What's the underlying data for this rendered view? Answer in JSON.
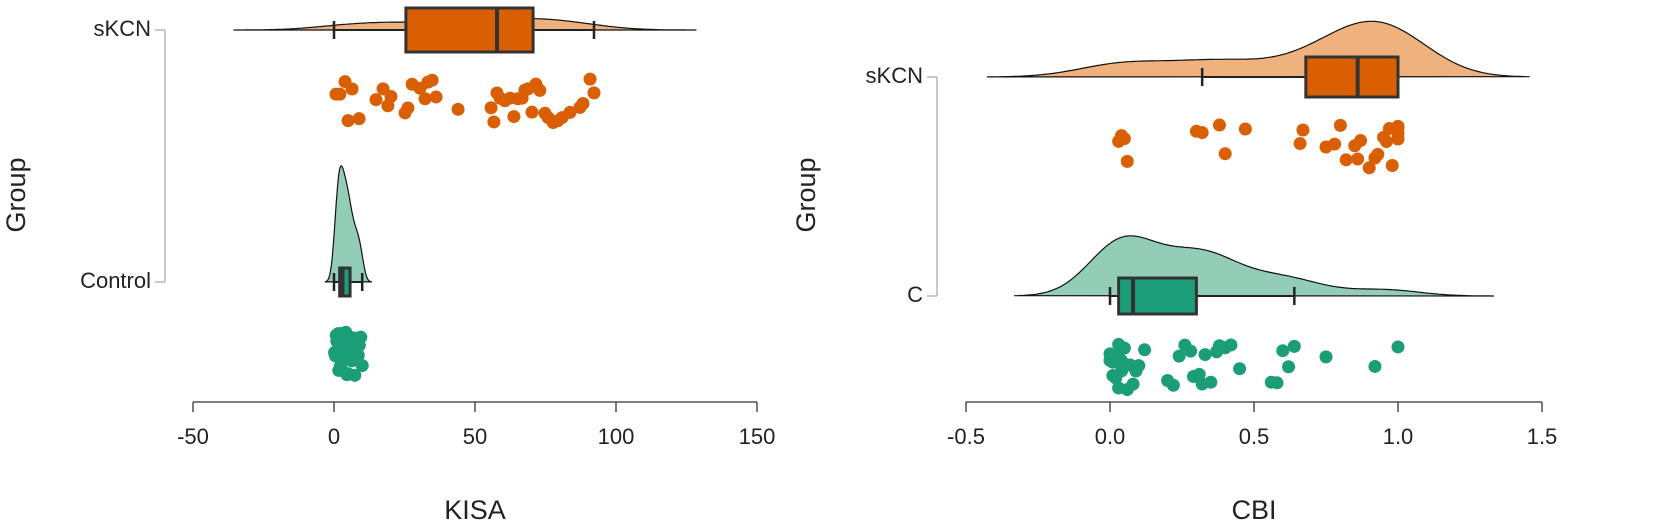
{
  "chart_data": [
    {
      "type": "raincloud",
      "x_label": "KISA",
      "y_label": "Group",
      "xlim": [
        -50,
        150
      ],
      "xticks": [
        -50,
        0,
        50,
        100,
        150
      ],
      "series": [
        {
          "name": "Control",
          "color": "#1b9e77",
          "cloud_color": "#93cdb7",
          "box": {
            "whisker_low": 0,
            "q1": 2,
            "median": 3,
            "q3": 5.7,
            "whisker_high": 10
          },
          "values": [
            0.2,
            0.5,
            0.8,
            1,
            1.2,
            1.4,
            1.5,
            1.7,
            1.9,
            2,
            2.1,
            2.3,
            2.5,
            2.6,
            2.8,
            3,
            3.1,
            3.3,
            3.5,
            3.8,
            4,
            4.2,
            4.4,
            4.6,
            4.8,
            5,
            5.2,
            5.4,
            5.7,
            6,
            6.3,
            6.6,
            7,
            7.4,
            7.8,
            8.2,
            8.6,
            9,
            9.5,
            10
          ]
        },
        {
          "name": "sKCN",
          "color": "#d95f02",
          "cloud_color": "#efb27f",
          "box": {
            "whisker_low": 0,
            "q1": 25.5,
            "median": 57.8,
            "q3": 70.6,
            "whisker_high": 92.2
          },
          "values": [
            0.7,
            2.1,
            3.9,
            5,
            6.4,
            8.9,
            14.9,
            17.4,
            19.1,
            20.2,
            25.2,
            26.2,
            27.7,
            30.5,
            32.3,
            33.3,
            34.8,
            36.2,
            44,
            55.7,
            56.7,
            57.8,
            58.9,
            60.6,
            62.4,
            63.8,
            65.2,
            66.7,
            67.7,
            68.8,
            70.2,
            71.6,
            73,
            74.8,
            75.9,
            77.7,
            79.4,
            80.9,
            83.7,
            87.2,
            88.3,
            90.8,
            92.2
          ]
        }
      ]
    },
    {
      "type": "raincloud",
      "x_label": "CBI",
      "y_label": "Group",
      "xlim": [
        -0.5,
        1.5
      ],
      "xticks": [
        -0.5,
        {
          "value": 0,
          "label": "0.0"
        },
        0.5,
        {
          "value": 1,
          "label": "1.0"
        },
        1.5
      ],
      "series": [
        {
          "name": "C",
          "color": "#1b9e77",
          "cloud_color": "#93cdb7",
          "box": {
            "whisker_low": 0,
            "q1": 0.03,
            "median": 0.08,
            "q3": 0.3,
            "whisker_high": 0.64
          },
          "values": [
            0,
            0,
            0.01,
            0.01,
            0.02,
            0.02,
            0.03,
            0.03,
            0.04,
            0.04,
            0.05,
            0.05,
            0.06,
            0.07,
            0.08,
            0.09,
            0.1,
            0.12,
            0.2,
            0.22,
            0.24,
            0.26,
            0.28,
            0.29,
            0.3,
            0.31,
            0.32,
            0.33,
            0.35,
            0.37,
            0.38,
            0.4,
            0.42,
            0.45,
            0.56,
            0.58,
            0.6,
            0.62,
            0.64,
            0.75,
            0.92,
            1
          ]
        },
        {
          "name": "sKCN",
          "color": "#d95f02",
          "cloud_color": "#efb27f",
          "box": {
            "whisker_low": 0.32,
            "q1": 0.68,
            "median": 0.86,
            "q3": 1,
            "whisker_high": 1
          },
          "values": [
            0.03,
            0.04,
            0.05,
            0.06,
            0.3,
            0.32,
            0.38,
            0.4,
            0.47,
            0.66,
            0.67,
            0.75,
            0.78,
            0.8,
            0.82,
            0.85,
            0.86,
            0.87,
            0.9,
            0.92,
            0.93,
            0.95,
            0.96,
            0.97,
            0.98,
            0.99,
            1,
            1,
            1,
            1
          ]
        }
      ]
    }
  ]
}
